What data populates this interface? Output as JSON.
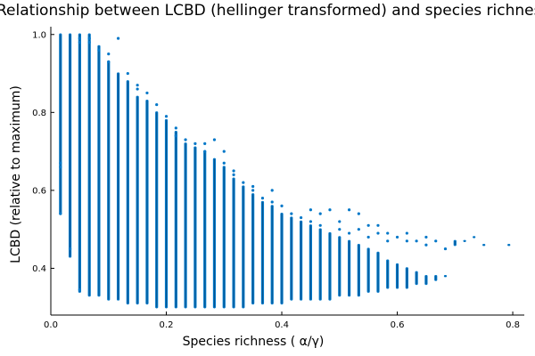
{
  "chart_data": {
    "type": "scatter",
    "title": "Relationship between LCBD (hellinger transformed) and species richness",
    "xlabel": "Species richness (  α/γ)",
    "ylabel": "LCBD (relative to maximum)",
    "xlim": [
      0.0,
      0.82
    ],
    "ylim": [
      0.28,
      1.02
    ],
    "xticks": [
      0.0,
      0.2,
      0.4,
      0.6,
      0.8
    ],
    "xtick_labels": [
      "0.0",
      "0.2",
      "0.4",
      "0.6",
      "0.8"
    ],
    "yticks": [
      0.4,
      0.6,
      0.8,
      1.0
    ],
    "ytick_labels": [
      "0.4",
      "0.6",
      "0.8",
      "1.0"
    ],
    "grid": false,
    "legend": "none",
    "marker_color": "#0077c8",
    "series": [
      {
        "name": "",
        "columns": [
          {
            "x": 0.0167,
            "ymin": 0.54,
            "ymax": 1.0,
            "outliers": [
              0.67,
              0.66,
              0.54
            ]
          },
          {
            "x": 0.0333,
            "ymin": 0.43,
            "ymax": 1.0,
            "outliers": [
              0.45
            ]
          },
          {
            "x": 0.05,
            "ymin": 0.34,
            "ymax": 1.0,
            "outliers": [
              0.345,
              0.98,
              0.99
            ]
          },
          {
            "x": 0.0667,
            "ymin": 0.33,
            "ymax": 1.0,
            "outliers": [
              0.98,
              0.99
            ]
          },
          {
            "x": 0.0833,
            "ymin": 0.33,
            "ymax": 0.97,
            "outliers": [
              0.96
            ]
          },
          {
            "x": 0.1,
            "ymin": 0.32,
            "ymax": 0.93,
            "outliers": [
              0.95,
              0.93
            ]
          },
          {
            "x": 0.1167,
            "ymin": 0.32,
            "ymax": 0.9,
            "outliers": [
              0.99
            ]
          },
          {
            "x": 0.1333,
            "ymin": 0.31,
            "ymax": 0.88,
            "outliers": [
              0.9
            ]
          },
          {
            "x": 0.15,
            "ymin": 0.31,
            "ymax": 0.84,
            "outliers": [
              0.87,
              0.86
            ]
          },
          {
            "x": 0.1667,
            "ymin": 0.31,
            "ymax": 0.83,
            "outliers": [
              0.85
            ]
          },
          {
            "x": 0.1833,
            "ymin": 0.3,
            "ymax": 0.8,
            "outliers": [
              0.82
            ]
          },
          {
            "x": 0.2,
            "ymin": 0.3,
            "ymax": 0.78,
            "outliers": [
              0.79
            ]
          },
          {
            "x": 0.2167,
            "ymin": 0.3,
            "ymax": 0.75,
            "outliers": [
              0.76,
              0.74
            ]
          },
          {
            "x": 0.2333,
            "ymin": 0.3,
            "ymax": 0.72,
            "outliers": [
              0.73
            ]
          },
          {
            "x": 0.25,
            "ymin": 0.3,
            "ymax": 0.71,
            "outliers": [
              0.72
            ]
          },
          {
            "x": 0.2667,
            "ymin": 0.3,
            "ymax": 0.7,
            "outliers": [
              0.72,
              0.7
            ]
          },
          {
            "x": 0.2833,
            "ymin": 0.3,
            "ymax": 0.68,
            "outliers": [
              0.73
            ]
          },
          {
            "x": 0.3,
            "ymin": 0.3,
            "ymax": 0.66,
            "outliers": [
              0.7,
              0.67
            ]
          },
          {
            "x": 0.3167,
            "ymin": 0.3,
            "ymax": 0.63,
            "outliers": [
              0.65,
              0.64
            ]
          },
          {
            "x": 0.3333,
            "ymin": 0.3,
            "ymax": 0.61,
            "outliers": [
              0.62
            ]
          },
          {
            "x": 0.35,
            "ymin": 0.31,
            "ymax": 0.59,
            "outliers": [
              0.61,
              0.6
            ]
          },
          {
            "x": 0.3667,
            "ymin": 0.31,
            "ymax": 0.57,
            "outliers": [
              0.58
            ]
          },
          {
            "x": 0.3833,
            "ymin": 0.31,
            "ymax": 0.56,
            "outliers": [
              0.6,
              0.57
            ]
          },
          {
            "x": 0.4,
            "ymin": 0.31,
            "ymax": 0.54,
            "outliers": [
              0.56
            ]
          },
          {
            "x": 0.4167,
            "ymin": 0.32,
            "ymax": 0.53,
            "outliers": [
              0.54
            ]
          },
          {
            "x": 0.4333,
            "ymin": 0.32,
            "ymax": 0.52,
            "outliers": [
              0.53
            ]
          },
          {
            "x": 0.45,
            "ymin": 0.32,
            "ymax": 0.51,
            "outliers": [
              0.55,
              0.52
            ]
          },
          {
            "x": 0.4667,
            "ymin": 0.32,
            "ymax": 0.5,
            "outliers": [
              0.54,
              0.51
            ]
          },
          {
            "x": 0.4833,
            "ymin": 0.32,
            "ymax": 0.49,
            "outliers": [
              0.55
            ]
          },
          {
            "x": 0.5,
            "ymin": 0.33,
            "ymax": 0.48,
            "outliers": [
              0.52,
              0.5
            ]
          },
          {
            "x": 0.5167,
            "ymin": 0.33,
            "ymax": 0.47,
            "outliers": [
              0.55,
              0.49
            ]
          },
          {
            "x": 0.5333,
            "ymin": 0.33,
            "ymax": 0.46,
            "outliers": [
              0.54,
              0.5
            ]
          },
          {
            "x": 0.55,
            "ymin": 0.34,
            "ymax": 0.45,
            "outliers": [
              0.51,
              0.48
            ]
          },
          {
            "x": 0.5667,
            "ymin": 0.34,
            "ymax": 0.44,
            "outliers": [
              0.51,
              0.49
            ]
          },
          {
            "x": 0.5833,
            "ymin": 0.35,
            "ymax": 0.42,
            "outliers": [
              0.49,
              0.47
            ]
          },
          {
            "x": 0.6,
            "ymin": 0.35,
            "ymax": 0.41,
            "outliers": [
              0.48
            ]
          },
          {
            "x": 0.6167,
            "ymin": 0.35,
            "ymax": 0.4,
            "outliers": [
              0.49,
              0.47
            ]
          },
          {
            "x": 0.6333,
            "ymin": 0.36,
            "ymax": 0.39,
            "outliers": [
              0.47
            ]
          },
          {
            "x": 0.65,
            "ymin": 0.36,
            "ymax": 0.38,
            "outliers": [
              0.48,
              0.46
            ]
          },
          {
            "x": 0.6667,
            "ymin": 0.37,
            "ymax": 0.38,
            "outliers": [
              0.47
            ]
          },
          {
            "x": 0.6833,
            "ymin": 0.38,
            "ymax": 0.38,
            "outliers": [
              0.45
            ]
          },
          {
            "x": 0.7,
            "ymin": 0.46,
            "ymax": 0.47,
            "outliers": []
          },
          {
            "x": 0.7167,
            "ymin": 0.47,
            "ymax": 0.47,
            "outliers": []
          },
          {
            "x": 0.733,
            "ymin": 0.48,
            "ymax": 0.48,
            "outliers": []
          },
          {
            "x": 0.75,
            "ymin": 0.46,
            "ymax": 0.46,
            "outliers": []
          },
          {
            "x": 0.7933,
            "ymin": 0.46,
            "ymax": 0.46,
            "outliers": []
          }
        ]
      }
    ]
  }
}
